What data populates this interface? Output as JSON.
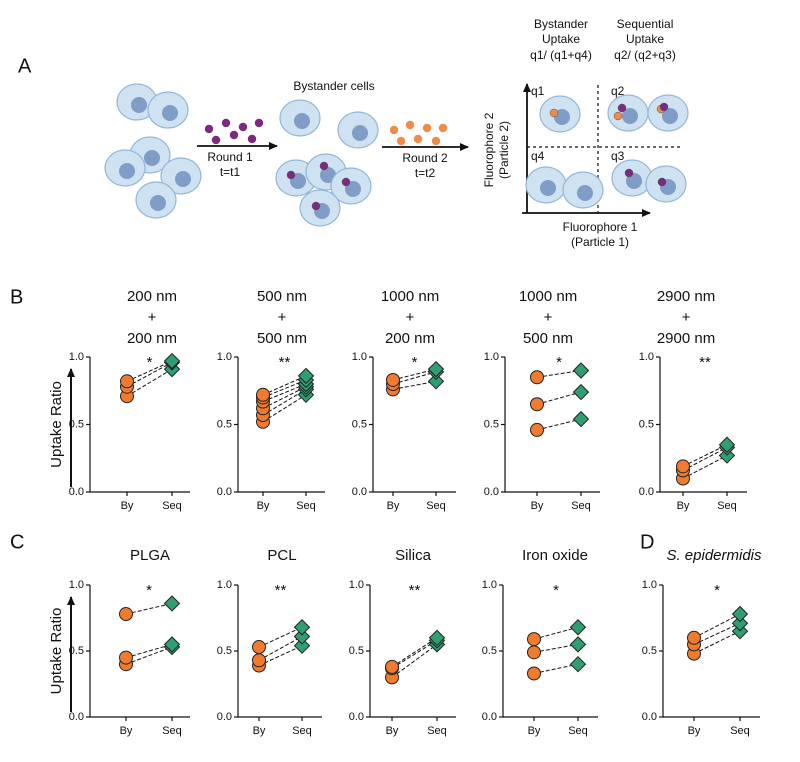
{
  "panel_labels": [
    "A",
    "B",
    "C",
    "D"
  ],
  "panel_a": {
    "bystander_cells": "Bystander cells",
    "round1": [
      "Round 1",
      "t=t1"
    ],
    "round2": [
      "Round 2",
      "t=t2"
    ],
    "bystander_header": [
      "Bystander",
      "Uptake",
      "q1/ (q1+q4)"
    ],
    "sequential_header": [
      "Sequential",
      "Uptake",
      "q2/ (q2+q3)"
    ],
    "quadrants": [
      "q1",
      "q2",
      "q4",
      "q3"
    ],
    "y_axis": [
      "Fluorophore 2",
      "(Particle 2)"
    ],
    "x_axis": [
      "Fluorophore 1",
      "(Particle 1)"
    ]
  },
  "chart_data": [
    {
      "type": "paired",
      "title": [
        "200 nm",
        "+",
        "200 nm"
      ],
      "ylabel": "Uptake Ratio",
      "annotation": "*",
      "categories": [
        "By",
        "Seq"
      ],
      "colors": [
        "#f07b2f",
        "#2f9e72"
      ],
      "ylim": [
        0,
        1
      ],
      "yticks": [
        {
          "value": 0,
          "label": "0.0"
        },
        {
          "value": 0.5,
          "label": "0.5"
        },
        {
          "value": 1,
          "label": "1.0"
        }
      ],
      "series": [
        {
          "values": [
            0.71,
            0.91
          ]
        },
        {
          "values": [
            0.78,
            0.96
          ]
        },
        {
          "values": [
            0.82,
            0.97
          ]
        }
      ]
    },
    {
      "type": "paired",
      "title": [
        "500 nm",
        "+",
        "500 nm"
      ],
      "annotation": "**",
      "categories": [
        "By",
        "Seq"
      ],
      "colors": [
        "#f07b2f",
        "#2f9e72"
      ],
      "ylim": [
        0,
        1
      ],
      "yticks": [
        {
          "value": 0,
          "label": "0.0"
        },
        {
          "value": 0.5,
          "label": "0.5"
        },
        {
          "value": 1,
          "label": "1.0"
        }
      ],
      "series": [
        {
          "values": [
            0.52,
            0.72
          ]
        },
        {
          "values": [
            0.57,
            0.76
          ]
        },
        {
          "values": [
            0.62,
            0.78
          ]
        },
        {
          "values": [
            0.67,
            0.8
          ]
        },
        {
          "values": [
            0.7,
            0.83
          ]
        },
        {
          "values": [
            0.72,
            0.86
          ]
        }
      ]
    },
    {
      "type": "paired",
      "title": [
        "1000 nm",
        "+",
        "200 nm"
      ],
      "annotation": "*",
      "categories": [
        "By",
        "Seq"
      ],
      "colors": [
        "#f07b2f",
        "#2f9e72"
      ],
      "ylim": [
        0,
        1
      ],
      "yticks": [
        {
          "value": 0,
          "label": "0.0"
        },
        {
          "value": 0.5,
          "label": "0.5"
        },
        {
          "value": 1,
          "label": "1.0"
        }
      ],
      "series": [
        {
          "values": [
            0.76,
            0.82
          ]
        },
        {
          "values": [
            0.8,
            0.89
          ]
        },
        {
          "values": [
            0.83,
            0.91
          ]
        }
      ]
    },
    {
      "type": "paired",
      "title": [
        "1000 nm",
        "+",
        "500 nm"
      ],
      "annotation": "*",
      "categories": [
        "By",
        "Seq"
      ],
      "colors": [
        "#f07b2f",
        "#2f9e72"
      ],
      "ylim": [
        0,
        1
      ],
      "yticks": [
        {
          "value": 0,
          "label": "0.0"
        },
        {
          "value": 0.5,
          "label": "0.5"
        },
        {
          "value": 1,
          "label": "1.0"
        }
      ],
      "series": [
        {
          "values": [
            0.46,
            0.54
          ]
        },
        {
          "values": [
            0.65,
            0.74
          ]
        },
        {
          "values": [
            0.85,
            0.9
          ]
        }
      ]
    },
    {
      "type": "paired",
      "title": [
        "2900 nm",
        "+",
        "2900 nm"
      ],
      "annotation": "**",
      "categories": [
        "By",
        "Seq"
      ],
      "colors": [
        "#f07b2f",
        "#2f9e72"
      ],
      "ylim": [
        0,
        1
      ],
      "yticks": [
        {
          "value": 0,
          "label": "0.0"
        },
        {
          "value": 0.5,
          "label": "0.5"
        },
        {
          "value": 1,
          "label": "1.0"
        }
      ],
      "series": [
        {
          "values": [
            0.1,
            0.27
          ]
        },
        {
          "values": [
            0.16,
            0.33
          ]
        },
        {
          "values": [
            0.19,
            0.35
          ]
        }
      ]
    },
    {
      "type": "paired",
      "title": [
        "PLGA"
      ],
      "ylabel": "Uptake Ratio",
      "annotation": "*",
      "categories": [
        "By",
        "Seq"
      ],
      "colors": [
        "#f07b2f",
        "#2f9e72"
      ],
      "ylim": [
        0,
        1
      ],
      "yticks": [
        {
          "value": 0,
          "label": "0.0"
        },
        {
          "value": 0.5,
          "label": "0.5"
        },
        {
          "value": 1,
          "label": "1.0"
        }
      ],
      "series": [
        {
          "values": [
            0.4,
            0.53
          ]
        },
        {
          "values": [
            0.45,
            0.55
          ]
        },
        {
          "values": [
            0.78,
            0.86
          ]
        }
      ]
    },
    {
      "type": "paired",
      "title": [
        "PCL"
      ],
      "annotation": "**",
      "categories": [
        "By",
        "Seq"
      ],
      "colors": [
        "#f07b2f",
        "#2f9e72"
      ],
      "ylim": [
        0,
        1
      ],
      "yticks": [
        {
          "value": 0,
          "label": "0.0"
        },
        {
          "value": 0.5,
          "label": "0.5"
        },
        {
          "value": 1,
          "label": "1.0"
        }
      ],
      "series": [
        {
          "values": [
            0.39,
            0.54
          ]
        },
        {
          "values": [
            0.43,
            0.61
          ]
        },
        {
          "values": [
            0.53,
            0.68
          ]
        }
      ]
    },
    {
      "type": "paired",
      "title": [
        "Silica"
      ],
      "annotation": "**",
      "categories": [
        "By",
        "Seq"
      ],
      "colors": [
        "#f07b2f",
        "#2f9e72"
      ],
      "ylim": [
        0,
        1
      ],
      "yticks": [
        {
          "value": 0,
          "label": "0.0"
        },
        {
          "value": 0.5,
          "label": "0.5"
        },
        {
          "value": 1,
          "label": "1.0"
        }
      ],
      "series": [
        {
          "values": [
            0.3,
            0.55
          ]
        },
        {
          "values": [
            0.37,
            0.58
          ]
        },
        {
          "values": [
            0.38,
            0.6
          ]
        }
      ]
    },
    {
      "type": "paired",
      "title": [
        "Iron oxide"
      ],
      "annotation": "*",
      "categories": [
        "By",
        "Seq"
      ],
      "colors": [
        "#f07b2f",
        "#2f9e72"
      ],
      "ylim": [
        0,
        1
      ],
      "yticks": [
        {
          "value": 0,
          "label": "0.0"
        },
        {
          "value": 0.5,
          "label": "0.5"
        },
        {
          "value": 1,
          "label": "1.0"
        }
      ],
      "series": [
        {
          "values": [
            0.33,
            0.4
          ]
        },
        {
          "values": [
            0.49,
            0.55
          ]
        },
        {
          "values": [
            0.59,
            0.68
          ]
        }
      ]
    },
    {
      "type": "paired",
      "title": [
        "S. epidermidis"
      ],
      "title_style": "italic",
      "annotation": "*",
      "categories": [
        "By",
        "Seq"
      ],
      "colors": [
        "#f07b2f",
        "#2f9e72"
      ],
      "ylim": [
        0,
        1
      ],
      "yticks": [
        {
          "value": 0,
          "label": "0.0"
        },
        {
          "value": 0.5,
          "label": "0.5"
        },
        {
          "value": 1,
          "label": "1.0"
        }
      ],
      "series": [
        {
          "values": [
            0.48,
            0.65
          ]
        },
        {
          "values": [
            0.55,
            0.71
          ]
        },
        {
          "values": [
            0.6,
            0.78
          ]
        }
      ]
    }
  ]
}
